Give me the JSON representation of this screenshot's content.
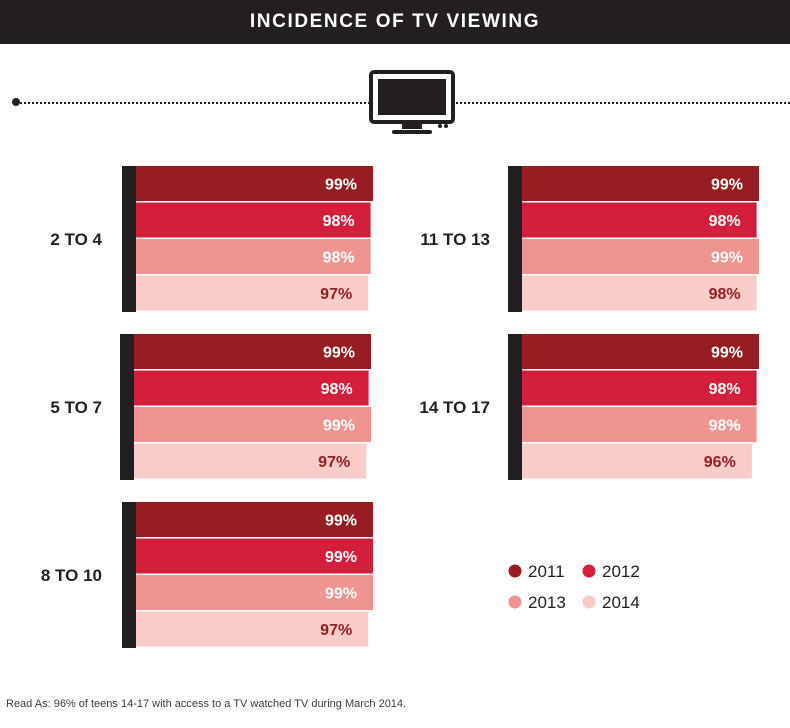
{
  "header": {
    "title": "INCIDENCE OF TV VIEWING"
  },
  "icons": {
    "tv": "tv-icon"
  },
  "note": "Read As: 96% of teens 14-17 with access to a TV watched TV during March 2014.",
  "chart_data": {
    "type": "bar",
    "orientation": "horizontal",
    "title": "INCIDENCE OF TV VIEWING",
    "xlim": [
      0,
      100
    ],
    "series": [
      {
        "name": "2011",
        "color": "#981d23"
      },
      {
        "name": "2012",
        "color": "#d21f3c"
      },
      {
        "name": "2013",
        "color": "#f09492"
      },
      {
        "name": "2014",
        "color": "#f8ccc8"
      }
    ],
    "label_colors": [
      "#ffffff",
      "#ffffff",
      "#ffffff",
      "#981d23"
    ],
    "groups": [
      {
        "label": "2 TO 4",
        "values": [
          99,
          98,
          98,
          97
        ]
      },
      {
        "label": "5 TO 7",
        "values": [
          99,
          98,
          99,
          97
        ]
      },
      {
        "label": "8 TO 10",
        "values": [
          99,
          99,
          99,
          97
        ]
      },
      {
        "label": "11 TO 13",
        "values": [
          99,
          98,
          99,
          98
        ]
      },
      {
        "label": "14 TO 17",
        "values": [
          99,
          98,
          98,
          96
        ]
      }
    ],
    "value_suffix": "%",
    "legend": {
      "entries": [
        "2011",
        "2012",
        "2013",
        "2014"
      ],
      "placement": "bottom-right"
    }
  }
}
